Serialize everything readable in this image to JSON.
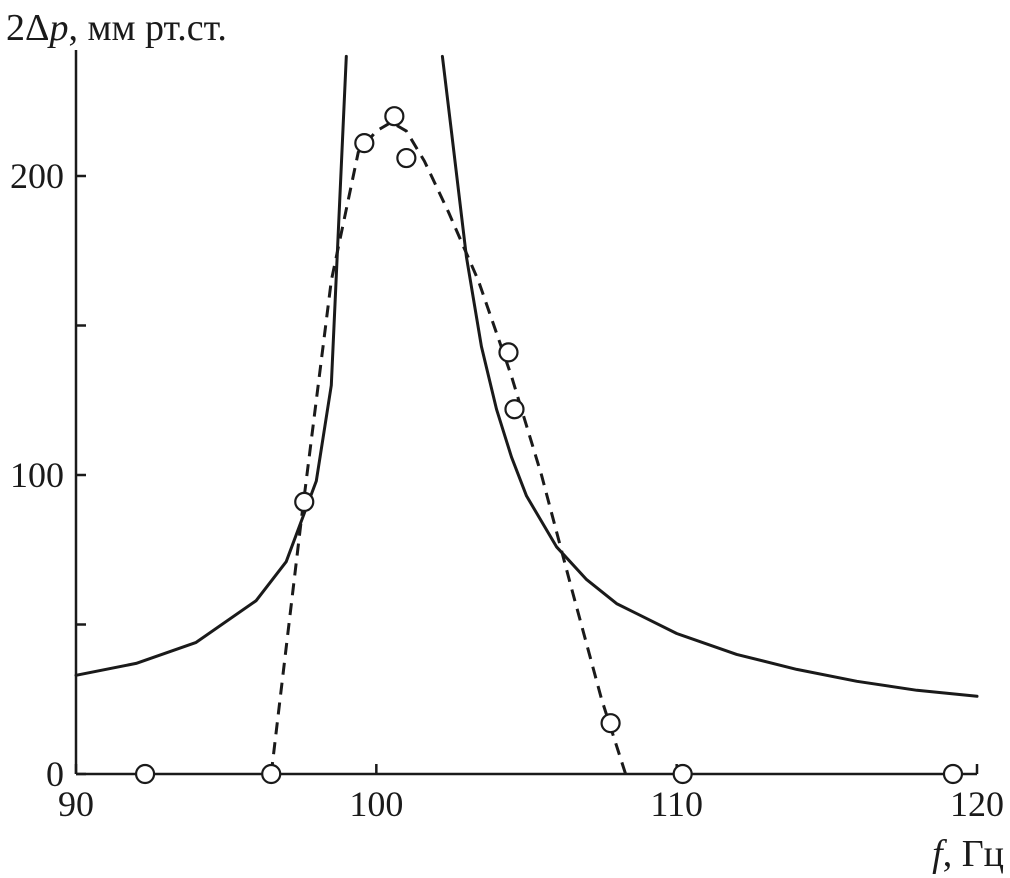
{
  "chart_data": {
    "type": "line",
    "ylabel_prefix": "2Δ",
    "ylabel_var": "p",
    "ylabel_rest": ", мм рт.ст.",
    "xlabel_var": "f",
    "xlabel_rest": ", Гц",
    "xlim": [
      90,
      120
    ],
    "ylim": [
      0,
      240
    ],
    "x_ticks": [
      90,
      100,
      110,
      120
    ],
    "x_tick_labels": [
      "90",
      "100",
      "110",
      "120"
    ],
    "y_ticks": [
      0,
      50,
      100,
      150,
      200
    ],
    "y_tick_labels": [
      "0",
      "",
      "100",
      "",
      "200"
    ],
    "grid": false,
    "series": [
      {
        "style": "solid",
        "curve": "resonance",
        "x": [
          90,
          92,
          94,
          96,
          97,
          98,
          98.5,
          99,
          102.2,
          102.5,
          103,
          103.5,
          104,
          104.5,
          105,
          106,
          107,
          108,
          110,
          112,
          114,
          116,
          118,
          120
        ],
        "y": [
          33,
          37,
          44,
          58,
          71,
          98,
          130,
          240,
          240,
          215,
          173,
          143,
          122,
          106,
          93,
          76,
          65,
          57,
          47,
          40,
          35,
          31,
          28,
          26
        ]
      },
      {
        "style": "dashed",
        "curve": "experimental fit",
        "x": [
          96.5,
          97.5,
          98.5,
          99.4,
          100,
          100.5,
          101,
          101.6,
          102.4,
          103.4,
          104.5,
          105.5,
          106.5,
          107.5,
          108.3
        ],
        "y": [
          0,
          85,
          165,
          208,
          215,
          218,
          215,
          205,
          188,
          165,
          133,
          100,
          62,
          25,
          0
        ]
      },
      {
        "style": "markers",
        "curve": "measured points",
        "x": [
          92.3,
          96.5,
          97.6,
          99.6,
          100.6,
          101,
          104.4,
          104.6,
          107.8,
          110.2,
          119.2
        ],
        "y": [
          0,
          0,
          91,
          211,
          220,
          206,
          141,
          122,
          17,
          0,
          0
        ]
      }
    ]
  }
}
